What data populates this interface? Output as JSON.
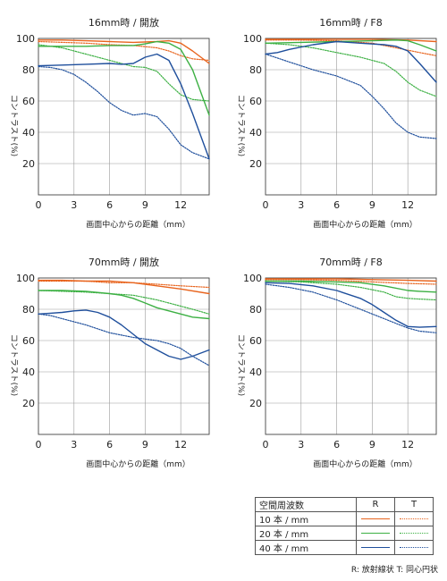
{
  "legend": {
    "header": "空間周波数",
    "r_label": "R",
    "t_label": "T",
    "rows": [
      {
        "label": "10 本 / mm",
        "color": "#e8641e"
      },
      {
        "label": "20 本 / mm",
        "color": "#3cb043"
      },
      {
        "label": "40 本 / mm",
        "color": "#1f4f9c"
      }
    ],
    "note": "R: 放射線状  T: 同心円状"
  },
  "chart_data": [
    {
      "type": "line",
      "title": "16mm時 / 開放",
      "xlabel": "画面中心からの距離（mm）",
      "ylabel": "コントラスト(%)",
      "xlim": [
        0,
        14.4
      ],
      "ylim": [
        0,
        100
      ],
      "xticks": [
        0,
        3,
        6,
        9,
        12
      ],
      "yticks": [
        20,
        40,
        60,
        80,
        100
      ],
      "series": [
        {
          "name": "10 本 / mm",
          "orientation": "R",
          "color": "#e8641e",
          "x": [
            0,
            2,
            4,
            6,
            8,
            10,
            11,
            12,
            13,
            14.4
          ],
          "y": [
            99,
            99,
            98.5,
            98,
            97.5,
            98,
            98.5,
            97,
            92,
            84
          ]
        },
        {
          "name": "10 本 / mm",
          "orientation": "T",
          "color": "#e8641e",
          "x": [
            0,
            2,
            4,
            6,
            8,
            10,
            11,
            12,
            13,
            14.4
          ],
          "y": [
            98,
            97.5,
            97,
            96,
            95.5,
            94,
            92,
            89,
            87,
            86
          ]
        },
        {
          "name": "20 本 / mm",
          "orientation": "R",
          "color": "#3cb043",
          "x": [
            0,
            2,
            4,
            6,
            8,
            9,
            10,
            11,
            12,
            13,
            14.4
          ],
          "y": [
            95,
            95,
            95,
            95.5,
            95.5,
            96.5,
            98,
            97,
            93,
            80,
            51
          ]
        },
        {
          "name": "20 本 / mm",
          "orientation": "T",
          "color": "#3cb043",
          "x": [
            0,
            2,
            4,
            6,
            8,
            9,
            10,
            11,
            12,
            13,
            14.4
          ],
          "y": [
            96,
            94,
            90,
            86,
            82,
            81.5,
            79,
            71,
            64,
            61,
            60
          ]
        },
        {
          "name": "40 本 / mm",
          "orientation": "R",
          "color": "#1f4f9c",
          "x": [
            0,
            2,
            4,
            6,
            7,
            8,
            9,
            10,
            11,
            12,
            13,
            14.4
          ],
          "y": [
            82.5,
            83,
            83.5,
            84,
            83.5,
            84,
            88,
            90,
            86,
            71,
            52,
            23
          ]
        },
        {
          "name": "40 本 / mm",
          "orientation": "T",
          "color": "#1f4f9c",
          "x": [
            0,
            1,
            2,
            3,
            4,
            5,
            6,
            7,
            8,
            9,
            10,
            11,
            12,
            13,
            14.4
          ],
          "y": [
            82,
            81.5,
            80,
            77,
            72,
            66,
            59,
            54,
            51,
            52,
            50,
            42,
            32,
            27,
            23
          ]
        }
      ]
    },
    {
      "type": "line",
      "title": "16mm時 / F8",
      "xlabel": "画面中心からの距離（mm）",
      "ylabel": "コントラスト(%)",
      "xlim": [
        0,
        14.4
      ],
      "ylim": [
        0,
        100
      ],
      "xticks": [
        0,
        3,
        6,
        9,
        12
      ],
      "yticks": [
        20,
        40,
        60,
        80,
        100
      ],
      "series": [
        {
          "name": "10 本 / mm",
          "orientation": "R",
          "color": "#e8641e",
          "x": [
            0,
            3,
            6,
            9,
            12,
            14.4
          ],
          "y": [
            99.5,
            99.5,
            99.5,
            99.5,
            99,
            98
          ]
        },
        {
          "name": "10 本 / mm",
          "orientation": "T",
          "color": "#e8641e",
          "x": [
            0,
            3,
            6,
            9,
            11,
            13,
            14.4
          ],
          "y": [
            99,
            99,
            98.5,
            97,
            94,
            91,
            89
          ]
        },
        {
          "name": "20 本 / mm",
          "orientation": "R",
          "color": "#3cb043",
          "x": [
            0,
            3,
            6,
            9,
            11,
            12,
            13,
            14.4
          ],
          "y": [
            97,
            97.5,
            98,
            98.5,
            99,
            98.5,
            96,
            92
          ]
        },
        {
          "name": "20 本 / mm",
          "orientation": "T",
          "color": "#3cb043",
          "x": [
            0,
            2,
            4,
            6,
            8,
            10,
            11,
            12,
            13,
            14.4
          ],
          "y": [
            97,
            96,
            94,
            91,
            88,
            84,
            79,
            72,
            67,
            63
          ]
        },
        {
          "name": "40 本 / mm",
          "orientation": "R",
          "color": "#1f4f9c",
          "x": [
            0,
            1,
            2,
            4,
            6,
            8,
            10,
            11,
            12,
            13,
            14.4
          ],
          "y": [
            90,
            91,
            93,
            96,
            98,
            97,
            96,
            95,
            92,
            84,
            72
          ]
        },
        {
          "name": "40 本 / mm",
          "orientation": "T",
          "color": "#1f4f9c",
          "x": [
            0,
            2,
            4,
            6,
            8,
            9,
            10,
            11,
            12,
            13,
            14.4
          ],
          "y": [
            90,
            85,
            80,
            76,
            70,
            63,
            55,
            46,
            40,
            37,
            36
          ]
        }
      ]
    },
    {
      "type": "line",
      "title": "70mm時 / 開放",
      "xlabel": "画面中心からの距離（mm）",
      "ylabel": "コントラスト(%)",
      "xlim": [
        0,
        14.4
      ],
      "ylim": [
        0,
        100
      ],
      "xticks": [
        0,
        3,
        6,
        9,
        12
      ],
      "yticks": [
        20,
        40,
        60,
        80,
        100
      ],
      "series": [
        {
          "name": "10 本 / mm",
          "orientation": "R",
          "color": "#e8641e",
          "x": [
            0,
            2,
            4,
            6,
            8,
            10,
            12,
            14.4
          ],
          "y": [
            98.5,
            98.5,
            98,
            98,
            97,
            95,
            93,
            90
          ]
        },
        {
          "name": "10 本 / mm",
          "orientation": "T",
          "color": "#e8641e",
          "x": [
            0,
            2,
            4,
            6,
            8,
            10,
            12,
            14.4
          ],
          "y": [
            98,
            98,
            98,
            97,
            97,
            96,
            95,
            94
          ]
        },
        {
          "name": "20 本 / mm",
          "orientation": "R",
          "color": "#3cb043",
          "x": [
            0,
            2,
            4,
            6,
            7,
            8,
            9,
            10,
            11,
            12,
            13,
            14.4
          ],
          "y": [
            92,
            92,
            91.5,
            90,
            89,
            87,
            84,
            81,
            79,
            77,
            75,
            74
          ]
        },
        {
          "name": "20 本 / mm",
          "orientation": "T",
          "color": "#3cb043",
          "x": [
            0,
            2,
            4,
            6,
            8,
            10,
            12,
            13,
            14.4
          ],
          "y": [
            92,
            91.5,
            91,
            90,
            89,
            86,
            82,
            80,
            77
          ]
        },
        {
          "name": "40 本 / mm",
          "orientation": "R",
          "color": "#1f4f9c",
          "x": [
            0,
            1,
            2,
            3,
            4,
            5,
            6,
            7,
            8,
            9,
            10,
            11,
            12,
            13,
            14.4
          ],
          "y": [
            77,
            77.5,
            78,
            79,
            79.5,
            78,
            75,
            70,
            64,
            58,
            54,
            50,
            48,
            50,
            54
          ]
        },
        {
          "name": "40 本 / mm",
          "orientation": "T",
          "color": "#1f4f9c",
          "x": [
            0,
            1,
            2,
            4,
            6,
            8,
            9,
            10,
            11,
            12,
            13,
            14.4
          ],
          "y": [
            77,
            76,
            74,
            70,
            65,
            62,
            61,
            60,
            58,
            55,
            50,
            44
          ]
        }
      ]
    },
    {
      "type": "line",
      "title": "70mm時 / F8",
      "xlabel": "画面中心からの距離（mm）",
      "ylabel": "コントラスト(%)",
      "xlim": [
        0,
        14.4
      ],
      "ylim": [
        0,
        100
      ],
      "xticks": [
        0,
        3,
        6,
        9,
        12
      ],
      "yticks": [
        20,
        40,
        60,
        80,
        100
      ],
      "series": [
        {
          "name": "10 本 / mm",
          "orientation": "R",
          "color": "#e8641e",
          "x": [
            0,
            3,
            6,
            9,
            12,
            14.4
          ],
          "y": [
            99.5,
            99.5,
            99.5,
            99,
            98.5,
            98
          ]
        },
        {
          "name": "10 本 / mm",
          "orientation": "T",
          "color": "#e8641e",
          "x": [
            0,
            3,
            6,
            9,
            12,
            14.4
          ],
          "y": [
            99,
            99,
            98.5,
            97.5,
            96.5,
            96
          ]
        },
        {
          "name": "20 本 / mm",
          "orientation": "R",
          "color": "#3cb043",
          "x": [
            0,
            3,
            6,
            8,
            10,
            12,
            13,
            14.4
          ],
          "y": [
            98,
            98,
            97.5,
            97,
            95,
            92,
            91.5,
            91
          ]
        },
        {
          "name": "20 本 / mm",
          "orientation": "T",
          "color": "#3cb043",
          "x": [
            0,
            3,
            6,
            8,
            10,
            11,
            12,
            13,
            14.4
          ],
          "y": [
            98,
            97.5,
            96,
            94,
            91,
            88,
            87,
            86.5,
            86
          ]
        },
        {
          "name": "40 本 / mm",
          "orientation": "R",
          "color": "#1f4f9c",
          "x": [
            0,
            2,
            4,
            6,
            8,
            9,
            10,
            11,
            12,
            13,
            14.4
          ],
          "y": [
            97,
            96.5,
            95,
            92,
            87,
            83,
            78,
            73,
            69,
            68.5,
            69
          ]
        },
        {
          "name": "40 本 / mm",
          "orientation": "T",
          "color": "#1f4f9c",
          "x": [
            0,
            2,
            4,
            6,
            8,
            10,
            11,
            12,
            13,
            14.4
          ],
          "y": [
            96,
            94,
            91,
            86,
            80,
            74,
            71,
            68,
            66,
            65
          ]
        }
      ]
    }
  ]
}
